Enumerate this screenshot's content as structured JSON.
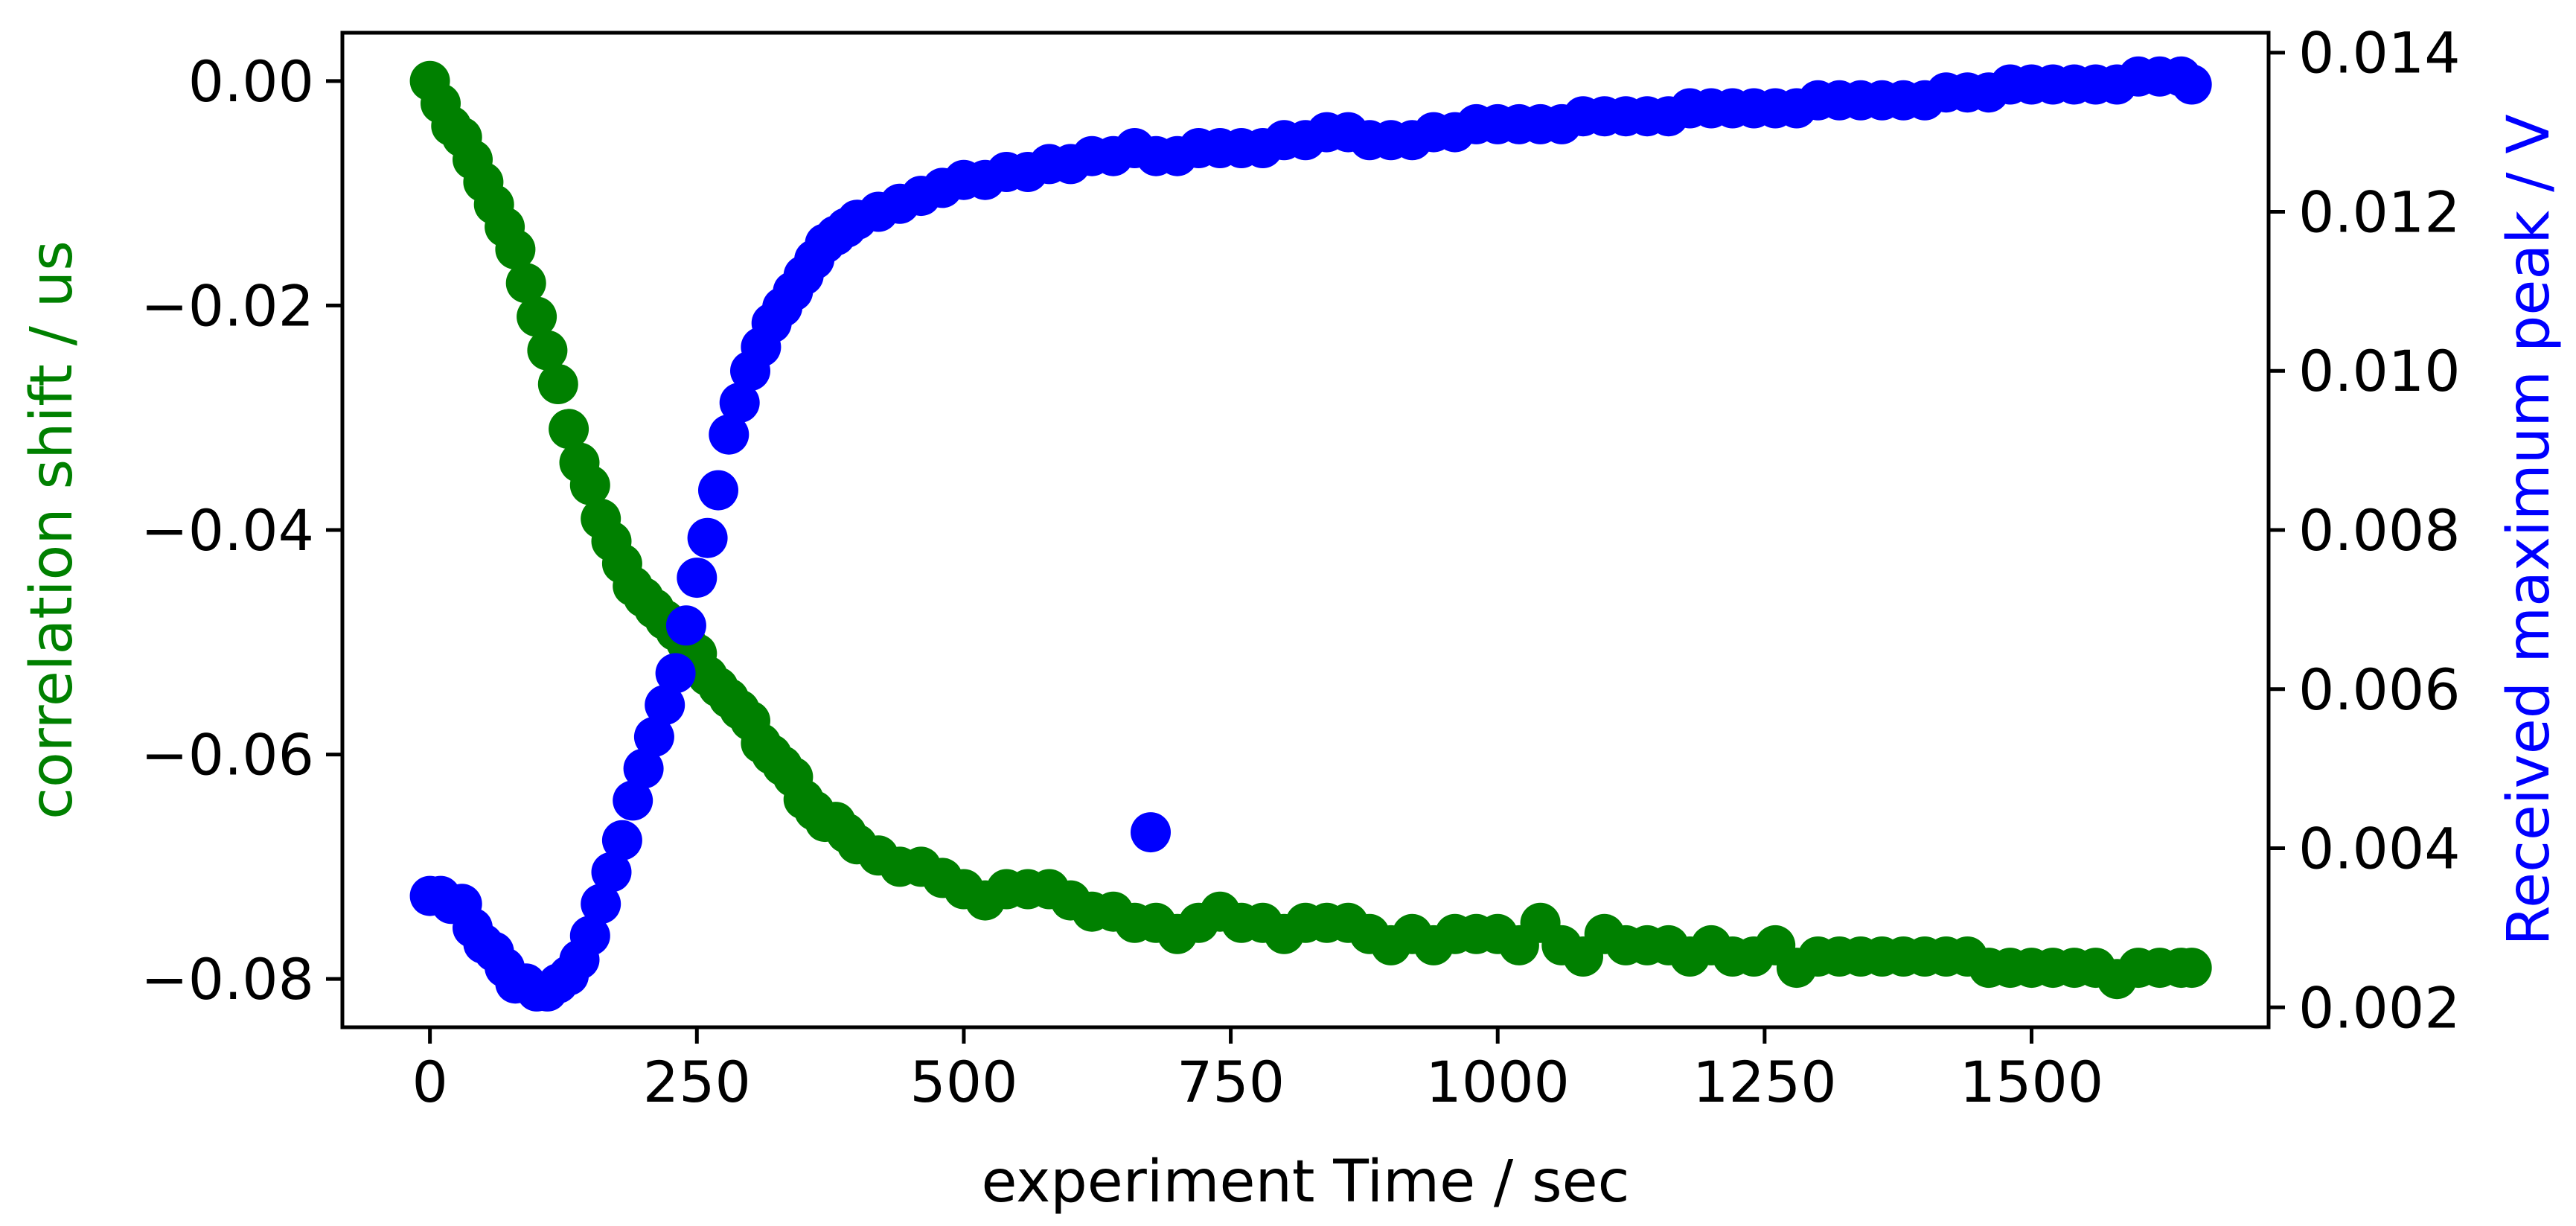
{
  "chart_data": {
    "type": "scatter",
    "title": "",
    "xlabel": "experiment Time / sec",
    "y_left_label": "correlation shift / us",
    "y_right_label": "Received maximum peak / V",
    "xlim": [
      -82,
      1722
    ],
    "ylim_left": [
      -0.0843,
      0.0043
    ],
    "ylim_right": [
      0.00175,
      0.01425
    ],
    "x_ticks": [
      "0",
      "250",
      "500",
      "750",
      "1000",
      "1250",
      "1500"
    ],
    "x_tick_values": [
      0,
      250,
      500,
      750,
      1000,
      1250,
      1500
    ],
    "y_left_ticks": [
      "0.00",
      "−0.02",
      "−0.04",
      "−0.06",
      "−0.08"
    ],
    "y_left_tick_values": [
      0.0,
      -0.02,
      -0.04,
      -0.06,
      -0.08
    ],
    "y_right_ticks": [
      "0.002",
      "0.004",
      "0.006",
      "0.008",
      "0.010",
      "0.012",
      "0.014"
    ],
    "y_right_tick_values": [
      0.002,
      0.004,
      0.006,
      0.008,
      0.01,
      0.012,
      0.014
    ],
    "colors": {
      "shift": "#008000",
      "peak": "#0000ff",
      "axis": "#000000"
    },
    "series": [
      {
        "name": "correlation shift",
        "axis": "left",
        "color": "#008000",
        "x": [
          0,
          10,
          20,
          30,
          40,
          50,
          60,
          70,
          80,
          90,
          100,
          110,
          120,
          130,
          140,
          150,
          160,
          170,
          180,
          190,
          200,
          210,
          220,
          230,
          240,
          250,
          260,
          270,
          280,
          290,
          300,
          310,
          320,
          330,
          340,
          350,
          360,
          370,
          380,
          390,
          400,
          420,
          440,
          460,
          480,
          500,
          520,
          540,
          560,
          580,
          600,
          620,
          640,
          660,
          680,
          700,
          720,
          740,
          760,
          780,
          800,
          820,
          840,
          860,
          880,
          900,
          920,
          940,
          960,
          980,
          1000,
          1020,
          1040,
          1060,
          1080,
          1100,
          1120,
          1140,
          1160,
          1180,
          1200,
          1220,
          1240,
          1260,
          1280,
          1300,
          1320,
          1340,
          1360,
          1380,
          1400,
          1420,
          1440,
          1460,
          1480,
          1500,
          1520,
          1540,
          1560,
          1580,
          1600,
          1620,
          1640,
          1650
        ],
        "values": [
          0.0,
          -0.002,
          -0.004,
          -0.005,
          -0.007,
          -0.009,
          -0.011,
          -0.013,
          -0.015,
          -0.018,
          -0.021,
          -0.024,
          -0.027,
          -0.031,
          -0.034,
          -0.036,
          -0.039,
          -0.041,
          -0.043,
          -0.045,
          -0.046,
          -0.047,
          -0.048,
          -0.049,
          -0.05,
          -0.051,
          -0.053,
          -0.054,
          -0.055,
          -0.056,
          -0.057,
          -0.059,
          -0.06,
          -0.061,
          -0.062,
          -0.064,
          -0.065,
          -0.066,
          -0.066,
          -0.067,
          -0.068,
          -0.069,
          -0.07,
          -0.07,
          -0.071,
          -0.072,
          -0.073,
          -0.072,
          -0.072,
          -0.072,
          -0.073,
          -0.074,
          -0.074,
          -0.075,
          -0.075,
          -0.076,
          -0.075,
          -0.074,
          -0.075,
          -0.075,
          -0.076,
          -0.075,
          -0.075,
          -0.075,
          -0.076,
          -0.077,
          -0.076,
          -0.077,
          -0.076,
          -0.076,
          -0.076,
          -0.077,
          -0.075,
          -0.077,
          -0.078,
          -0.076,
          -0.077,
          -0.077,
          -0.077,
          -0.078,
          -0.077,
          -0.078,
          -0.078,
          -0.077,
          -0.079,
          -0.078,
          -0.078,
          -0.078,
          -0.078,
          -0.078,
          -0.078,
          -0.078,
          -0.078,
          -0.079,
          -0.079,
          -0.079,
          -0.079,
          -0.079,
          -0.079,
          -0.08,
          -0.079,
          -0.079,
          -0.079,
          -0.079
        ]
      },
      {
        "name": "received maximum peak",
        "axis": "right",
        "color": "#0000ff",
        "x": [
          0,
          10,
          20,
          30,
          40,
          50,
          60,
          70,
          80,
          90,
          100,
          110,
          120,
          130,
          140,
          150,
          160,
          170,
          180,
          190,
          200,
          210,
          220,
          230,
          240,
          250,
          260,
          270,
          280,
          290,
          300,
          310,
          320,
          330,
          340,
          350,
          360,
          370,
          380,
          390,
          400,
          420,
          440,
          460,
          480,
          500,
          520,
          540,
          560,
          580,
          600,
          620,
          640,
          660,
          675,
          680,
          700,
          720,
          740,
          760,
          780,
          800,
          820,
          840,
          860,
          880,
          900,
          920,
          940,
          960,
          980,
          1000,
          1020,
          1040,
          1060,
          1080,
          1100,
          1120,
          1140,
          1160,
          1180,
          1200,
          1220,
          1240,
          1260,
          1280,
          1300,
          1320,
          1340,
          1360,
          1380,
          1400,
          1420,
          1440,
          1460,
          1480,
          1500,
          1520,
          1540,
          1560,
          1580,
          1600,
          1620,
          1640,
          1650
        ],
        "values": [
          0.0034,
          0.0034,
          0.0033,
          0.0033,
          0.003,
          0.0028,
          0.0027,
          0.0025,
          0.0023,
          0.0023,
          0.0022,
          0.0022,
          0.0023,
          0.0024,
          0.0026,
          0.0029,
          0.0033,
          0.0037,
          0.0041,
          0.0046,
          0.005,
          0.0054,
          0.0058,
          0.0062,
          0.0068,
          0.0074,
          0.0079,
          0.0085,
          0.0092,
          0.0096,
          0.01,
          0.0103,
          0.0106,
          0.0108,
          0.011,
          0.0112,
          0.0114,
          0.0116,
          0.0117,
          0.0118,
          0.0119,
          0.012,
          0.0121,
          0.0122,
          0.0123,
          0.0124,
          0.0124,
          0.0125,
          0.0125,
          0.0126,
          0.0126,
          0.0127,
          0.0127,
          0.0128,
          0.0042,
          0.0127,
          0.0127,
          0.0128,
          0.0128,
          0.0128,
          0.0128,
          0.0129,
          0.0129,
          0.013,
          0.013,
          0.0129,
          0.0129,
          0.0129,
          0.013,
          0.013,
          0.0131,
          0.0131,
          0.0131,
          0.0131,
          0.0131,
          0.0132,
          0.0132,
          0.0132,
          0.0132,
          0.0132,
          0.0133,
          0.0133,
          0.0133,
          0.0133,
          0.0133,
          0.0133,
          0.0134,
          0.0134,
          0.0134,
          0.0134,
          0.0134,
          0.0134,
          0.0135,
          0.0135,
          0.0135,
          0.0136,
          0.0136,
          0.0136,
          0.0136,
          0.0136,
          0.0136,
          0.0137,
          0.0137,
          0.0137,
          0.0136
        ]
      }
    ]
  }
}
